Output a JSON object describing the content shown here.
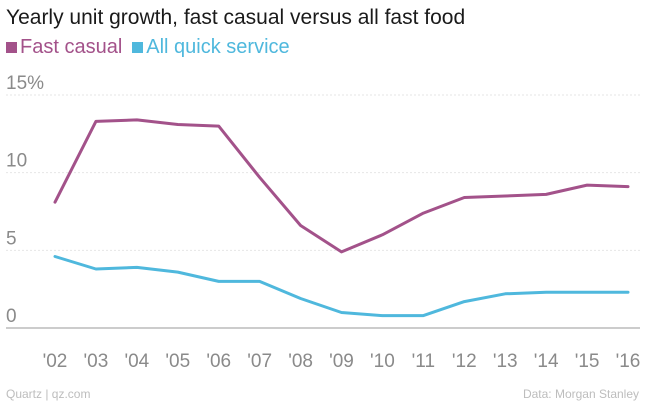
{
  "chart_data": {
    "type": "line",
    "title": "Yearly unit growth, fast casual versus all fast food",
    "xlabel": "",
    "ylabel": "",
    "categories": [
      "'02",
      "'03",
      "'04",
      "'05",
      "'06",
      "'07",
      "'08",
      "'09",
      "'10",
      "'11",
      "'12",
      "'13",
      "'14",
      "'15",
      "'16"
    ],
    "series": [
      {
        "name": "Fast casual",
        "color": "#a3528a",
        "values": [
          8.1,
          13.3,
          13.4,
          13.1,
          13.0,
          9.7,
          6.6,
          4.9,
          6.0,
          7.4,
          8.4,
          8.5,
          8.6,
          9.2,
          9.1
        ]
      },
      {
        "name": "All quick service",
        "color": "#4fb8dd",
        "values": [
          4.6,
          3.8,
          3.9,
          3.6,
          3.0,
          3.0,
          1.9,
          1.0,
          0.8,
          0.8,
          1.7,
          2.2,
          2.3,
          2.3,
          2.3
        ]
      }
    ],
    "ylim": [
      0,
      15
    ],
    "yticks": [
      {
        "value": 15,
        "label": "15%"
      },
      {
        "value": 10,
        "label": "10"
      },
      {
        "value": 5,
        "label": "5"
      },
      {
        "value": 0,
        "label": "0"
      }
    ],
    "grid": true,
    "legend": "top-left"
  },
  "footer": {
    "source_left": "Quartz | qz.com",
    "source_right": "Data: Morgan Stanley"
  }
}
